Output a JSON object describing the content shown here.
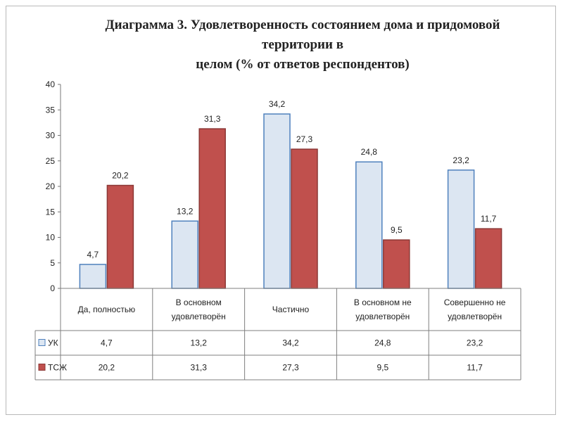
{
  "page": {
    "title_line1": "Диаграмма 3. Удовлетворенность состоянием дома и придомовой территории в",
    "title_line2": "целом (% от ответов респондентов)"
  },
  "chart_data": {
    "type": "bar",
    "title": "Диаграмма 3. Удовлетворенность состоянием дома и придомовой территории в целом (% от ответов респондентов)",
    "categories": [
      [
        "Да, полностью"
      ],
      [
        "В основном",
        "удовлетворён"
      ],
      [
        "Частично"
      ],
      [
        "В основном не",
        "удовлетворён"
      ],
      [
        "Совершенно не",
        "удовлетворён"
      ]
    ],
    "series": [
      {
        "name": "УК",
        "values": [
          4.7,
          13.2,
          34.2,
          24.8,
          23.2
        ],
        "labels": [
          "4,7",
          "13,2",
          "34,2",
          "24,8",
          "23,2"
        ],
        "color": "#dce6f2",
        "border": "#4f81bd"
      },
      {
        "name": "ТСЖ",
        "values": [
          20.2,
          31.3,
          27.3,
          9.5,
          11.7
        ],
        "labels": [
          "20,2",
          "31,3",
          "27,3",
          "9,5",
          "11,7"
        ],
        "color": "#c0504d",
        "border": "#8c3836"
      }
    ],
    "ylim": [
      0,
      40
    ],
    "yticks": [
      0,
      5,
      10,
      15,
      20,
      25,
      30,
      35,
      40
    ],
    "grid": false,
    "legend": "data-table"
  }
}
